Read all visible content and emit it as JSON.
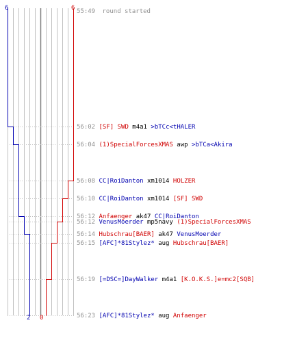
{
  "header": {
    "blue_count": "6",
    "red_count": "6"
  },
  "footer": {
    "blue_count": "2",
    "red_count": "0"
  },
  "colors": {
    "blue": "#0000b0",
    "red": "#d00000",
    "text": "#000000",
    "time": "#909090",
    "grid": "#c0c0c0",
    "axis": "#808080"
  },
  "start": {
    "time": "55:49",
    "text": "round started"
  },
  "events": [
    {
      "time": "56:02",
      "parts": [
        {
          "t": "[SF] SWD",
          "c": "red"
        },
        {
          "t": " m4a1 ",
          "c": "black"
        },
        {
          "t": ">bTCc<tHALER",
          "c": "blue"
        }
      ]
    },
    {
      "time": "56:04",
      "parts": [
        {
          "t": "(1)SpecialForcesXMAS",
          "c": "red"
        },
        {
          "t": " awp ",
          "c": "black"
        },
        {
          "t": ">bTCa<Akira",
          "c": "blue"
        }
      ]
    },
    {
      "time": "56:08",
      "parts": [
        {
          "t": "CC|RoiDanton",
          "c": "blue"
        },
        {
          "t": " xm1014 ",
          "c": "black"
        },
        {
          "t": "HOLZER",
          "c": "red"
        }
      ]
    },
    {
      "time": "56:10",
      "parts": [
        {
          "t": "CC|RoiDanton",
          "c": "blue"
        },
        {
          "t": " xm1014 ",
          "c": "black"
        },
        {
          "t": "[SF] SWD",
          "c": "red"
        }
      ]
    },
    {
      "time": "56:12",
      "parts": [
        {
          "t": "Anfaenger",
          "c": "red"
        },
        {
          "t": " ak47 ",
          "c": "black"
        },
        {
          "t": "CC|RoiDanton",
          "c": "blue"
        }
      ]
    },
    {
      "time": "56:12",
      "parts": [
        {
          "t": "VenusMoerder",
          "c": "blue"
        },
        {
          "t": " mp5navy ",
          "c": "black"
        },
        {
          "t": "(1)SpecialForcesXMAS",
          "c": "red"
        }
      ]
    },
    {
      "time": "56:14",
      "parts": [
        {
          "t": "Hubschrau[BAER]",
          "c": "red"
        },
        {
          "t": " ak47 ",
          "c": "black"
        },
        {
          "t": "VenusMoerder",
          "c": "blue"
        }
      ]
    },
    {
      "time": "56:15",
      "parts": [
        {
          "t": "[AFC]*81Stylez*",
          "c": "blue"
        },
        {
          "t": " aug ",
          "c": "black"
        },
        {
          "t": "Hubschrau[BAER]",
          "c": "red"
        }
      ]
    },
    {
      "time": "56:19",
      "parts": [
        {
          "t": "[=DSC=]DayWalker",
          "c": "blue"
        },
        {
          "t": " m4a1 ",
          "c": "black"
        },
        {
          "t": "[K.O.K.S.]e=mc2[SQB]",
          "c": "red"
        }
      ]
    },
    {
      "time": "56:23",
      "parts": [
        {
          "t": "[AFC]*81Stylez*",
          "c": "blue"
        },
        {
          "t": " aug ",
          "c": "black"
        },
        {
          "t": "Anfaenger",
          "c": "red"
        }
      ]
    }
  ]
}
